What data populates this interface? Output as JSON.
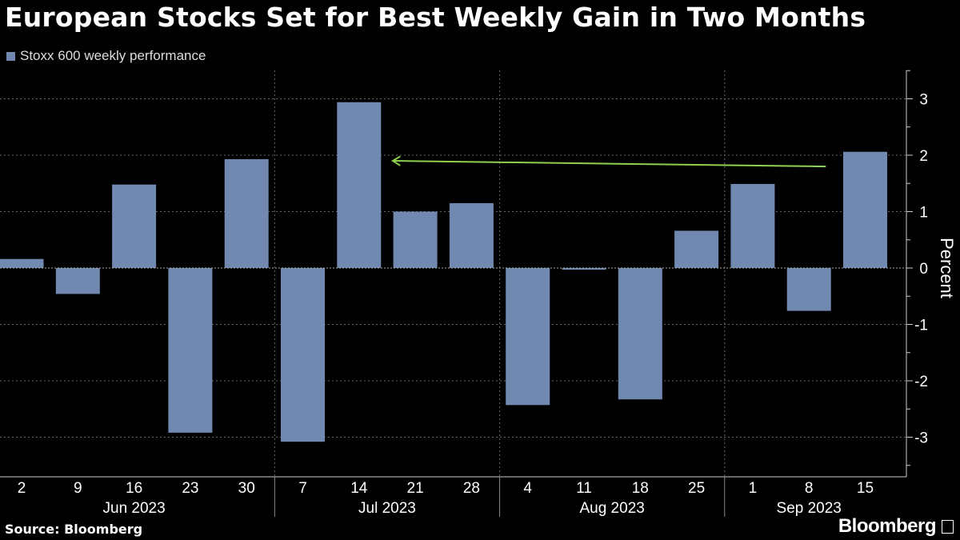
{
  "title": "European Stocks Set for Best Weekly Gain in Two Months",
  "source": "Source: Bloomberg",
  "brand": "Bloomberg",
  "chart_data": {
    "type": "bar",
    "title": "European Stocks Set for Best Weekly Gain in Two Months",
    "legend": [
      "Stoxx 600 weekly performance"
    ],
    "legend_position": "top-left",
    "ylabel": "Percent",
    "xlabel": "",
    "ylim": [
      -3.5,
      3.5
    ],
    "yticks": [
      -3,
      -2,
      -1,
      0,
      1,
      2,
      3
    ],
    "y_axis_position": "right",
    "grid": true,
    "bar_color": "#7189b0",
    "categories": [
      "2",
      "9",
      "16",
      "23",
      "30",
      "7",
      "14",
      "21",
      "28",
      "4",
      "11",
      "18",
      "25",
      "1",
      "8",
      "15"
    ],
    "months": [
      {
        "label": "Jun 2023",
        "start": 0,
        "end": 4
      },
      {
        "label": "Jul 2023",
        "start": 5,
        "end": 8
      },
      {
        "label": "Aug 2023",
        "start": 9,
        "end": 12
      },
      {
        "label": "Sep 2023",
        "start": 13,
        "end": 15
      }
    ],
    "series": [
      {
        "name": "Stoxx 600 weekly performance",
        "values": [
          0.16,
          -0.46,
          1.48,
          -2.92,
          1.93,
          -3.08,
          2.94,
          1.0,
          1.15,
          -2.43,
          -0.03,
          -2.33,
          0.66,
          1.49,
          -0.76,
          2.06
        ]
      }
    ],
    "annotation": {
      "type": "arrow",
      "color": "#8fd14f",
      "from_category": 14.3,
      "from_value": 1.8,
      "to_category": 6.6,
      "to_value": 1.9
    }
  }
}
